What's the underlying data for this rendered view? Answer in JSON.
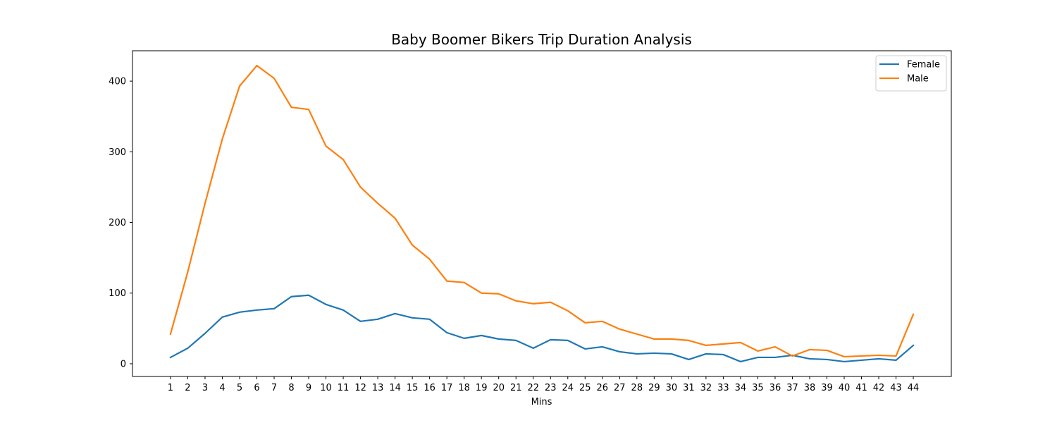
{
  "chart_data": {
    "type": "line",
    "title": "Baby Boomer Bikers Trip Duration Analysis",
    "xlabel": "Mins",
    "ylabel": "",
    "x": [
      1,
      2,
      3,
      4,
      5,
      6,
      7,
      8,
      9,
      10,
      11,
      12,
      13,
      14,
      15,
      16,
      17,
      18,
      19,
      20,
      21,
      22,
      23,
      24,
      25,
      26,
      27,
      28,
      29,
      30,
      31,
      32,
      33,
      34,
      35,
      36,
      37,
      38,
      39,
      40,
      41,
      42,
      43,
      44
    ],
    "xlim": [
      -1.2,
      46.2
    ],
    "ylim": [
      -18,
      443
    ],
    "yticks": [
      0,
      100,
      200,
      300,
      400
    ],
    "grid": false,
    "legend_position": "top-right",
    "series": [
      {
        "name": "Female",
        "color": "#1f77b4",
        "values": [
          9,
          22,
          43,
          66,
          73,
          76,
          78,
          95,
          97,
          84,
          76,
          60,
          63,
          71,
          65,
          63,
          44,
          36,
          40,
          35,
          33,
          22,
          34,
          33,
          21,
          24,
          17,
          14,
          15,
          14,
          6,
          14,
          13,
          3,
          9,
          9,
          12,
          7,
          6,
          3,
          5,
          7,
          5,
          26
        ]
      },
      {
        "name": "Male",
        "color": "#ff7f0e",
        "values": [
          42,
          130,
          227,
          318,
          393,
          422,
          404,
          363,
          360,
          308,
          289,
          250,
          227,
          206,
          168,
          148,
          117,
          115,
          100,
          99,
          89,
          85,
          87,
          75,
          58,
          60,
          49,
          42,
          35,
          35,
          33,
          26,
          28,
          30,
          18,
          24,
          11,
          20,
          19,
          10,
          11,
          12,
          11,
          70
        ]
      }
    ]
  }
}
